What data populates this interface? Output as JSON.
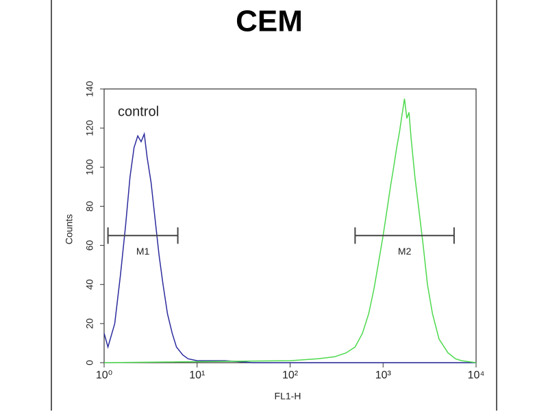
{
  "chart_data": {
    "type": "line",
    "title": "CEM",
    "xlabel": "FL1-H",
    "ylabel": "Counts",
    "xscale": "log",
    "xlim": [
      1,
      10000
    ],
    "xticks": [
      {
        "value": 1,
        "label": "10⁰"
      },
      {
        "value": 10,
        "label": "10¹"
      },
      {
        "value": 100,
        "label": "10²"
      },
      {
        "value": 1000,
        "label": "10³"
      },
      {
        "value": 10000,
        "label": "10⁴"
      }
    ],
    "ylim": [
      0,
      140
    ],
    "yticks": [
      0,
      20,
      40,
      60,
      80,
      100,
      120,
      140
    ],
    "series": [
      {
        "name": "control",
        "color": "#2b2b9e",
        "x": [
          1.0,
          1.1,
          1.3,
          1.5,
          1.7,
          1.9,
          2.1,
          2.3,
          2.5,
          2.7,
          2.9,
          3.2,
          3.5,
          3.9,
          4.3,
          4.8,
          5.4,
          6,
          7,
          8,
          10,
          13,
          20,
          40,
          100,
          300,
          1000,
          10000
        ],
        "values": [
          15,
          8,
          20,
          45,
          70,
          95,
          110,
          116,
          113,
          117,
          105,
          92,
          75,
          55,
          40,
          25,
          15,
          8,
          4,
          2,
          1,
          1,
          1,
          0,
          0,
          0,
          0,
          0
        ]
      },
      {
        "color": "#4cd94c",
        "x": [
          1,
          100,
          200,
          300,
          400,
          500,
          600,
          700,
          800,
          900,
          1000,
          1100,
          1200,
          1300,
          1400,
          1500,
          1600,
          1700,
          1800,
          1900,
          2000,
          2200,
          2400,
          2700,
          3000,
          3400,
          4000,
          5000,
          6000,
          7000,
          10000
        ],
        "values": [
          0,
          1,
          2,
          3,
          5,
          8,
          15,
          25,
          38,
          52,
          65,
          78,
          90,
          100,
          110,
          118,
          127,
          135,
          125,
          128,
          115,
          95,
          80,
          60,
          40,
          25,
          12,
          5,
          2,
          1,
          0
        ]
      }
    ],
    "markers": [
      {
        "label": "M1",
        "range": [
          1.1,
          6.2
        ],
        "y": 65
      },
      {
        "label": "M2",
        "range": [
          500,
          5800
        ],
        "y": 65
      }
    ]
  }
}
